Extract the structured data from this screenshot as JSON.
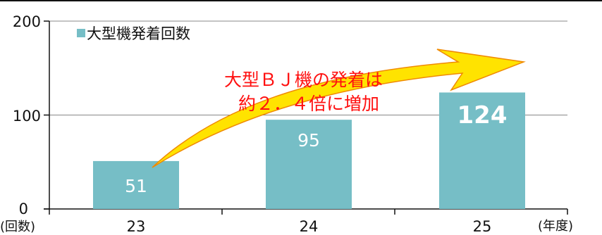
{
  "chart_data": {
    "type": "bar",
    "categories": [
      "23",
      "24",
      "25"
    ],
    "series": [
      {
        "name": "大型機発着回数",
        "values": [
          51,
          95,
          124
        ]
      }
    ],
    "ylim": [
      0,
      200
    ],
    "y_ticks": [
      "0",
      "100",
      "200"
    ],
    "ylabel": "(回数)",
    "xlabel": "(年度)",
    "data_labels": [
      "51",
      "95",
      "124"
    ],
    "annotation": {
      "line1": "大型ＢＪ機の発着は",
      "line2": "約２．４倍に増加"
    },
    "legend_placement": "top-left",
    "grid": true
  },
  "colors": {
    "bar": "#76BEC6",
    "axis": "#111111",
    "grid": "#888888",
    "arrow": "#FFE300",
    "arrow_edge": "#F08A00",
    "annotation_text": "#FF1010"
  }
}
